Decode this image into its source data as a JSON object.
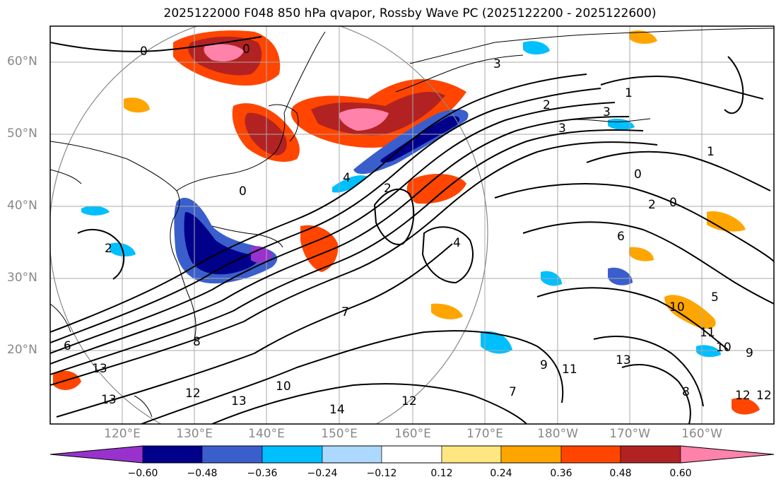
{
  "title": "2025122000 F048 850 hPa qvapor, Rossby Wave PC (2025122200 - 2025122600)",
  "lat_labels": [
    "60°N",
    "50°N",
    "40°N",
    "30°N",
    "20°N"
  ],
  "lon_labels": [
    "120°E",
    "130°E",
    "140°E",
    "150°E",
    "160°E",
    "170°E",
    "180°W",
    "170°W",
    "160°W"
  ],
  "contour_labels": [
    "0",
    "0",
    "3",
    "1",
    "3",
    "3",
    "2",
    "1",
    "0",
    "2",
    "0",
    "6",
    "4",
    "7",
    "5",
    "10",
    "11",
    "10",
    "9",
    "9",
    "11",
    "12",
    "13",
    "13",
    "13",
    "12",
    "14",
    "12",
    "10",
    "8",
    "7",
    "8",
    "12",
    "6",
    "4",
    "2",
    "2",
    "0",
    "13"
  ],
  "colorbar": {
    "labels": [
      "−0.60",
      "−0.48",
      "−0.36",
      "−0.24",
      "−0.12",
      "0.12",
      "0.24",
      "0.36",
      "0.48",
      "0.60"
    ],
    "colors": [
      "#9932cc",
      "#00008b",
      "#3a5fcd",
      "#00bfff",
      "#add8ff",
      "#ffffff",
      "#ffe680",
      "#ffa500",
      "#ff4500",
      "#b22222",
      "#ff82ab"
    ]
  },
  "colors": {
    "gridline": "#aaaaaa",
    "contour": "#000000",
    "coastline": "#000000",
    "circle": "#888888"
  }
}
